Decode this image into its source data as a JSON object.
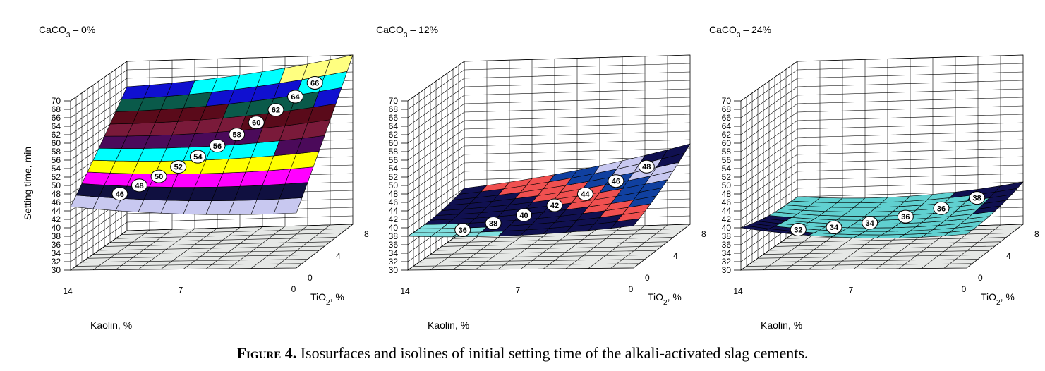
{
  "figure": {
    "caption_label": "Figure 4.",
    "caption_text": " Isosurfaces and isolines of initial setting time of the alkali-activated slag cements."
  },
  "chart_data": [
    {
      "type": "surface",
      "title_main": "CaCO",
      "title_sub": "3",
      "title_rest": " – 0%",
      "zlabel": "Setting time, min",
      "xlabel": "Kaolin, %",
      "ylabel_main": "TiO",
      "ylabel_sub": "2",
      "ylabel_rest": ", %",
      "x_ticks": [
        "14",
        "7",
        "0"
      ],
      "y_ticks": [
        "0",
        "4",
        "8"
      ],
      "z_ticks": [
        "30",
        "32",
        "34",
        "36",
        "38",
        "40",
        "42",
        "44",
        "46",
        "48",
        "50",
        "52",
        "54",
        "56",
        "58",
        "60",
        "62",
        "64",
        "66",
        "68",
        "70"
      ],
      "zlim": [
        30,
        70
      ],
      "corners": {
        "kaolin14_tio0": 45,
        "kaolin0_tio0": 43,
        "kaolin14_tio8": 64,
        "kaolin0_tio8": 70
      },
      "isolines": [
        "46",
        "48",
        "50",
        "52",
        "54",
        "56",
        "58",
        "60",
        "62",
        "64",
        "66"
      ],
      "bands": [
        {
          "max": 46,
          "color": "#c8c8f0"
        },
        {
          "max": 48,
          "color": "#101040"
        },
        {
          "max": 50,
          "color": "#ff00ff"
        },
        {
          "max": 52,
          "color": "#ffff00"
        },
        {
          "max": 54,
          "color": "#00ffff"
        },
        {
          "max": 56,
          "color": "#4b0a5a"
        },
        {
          "max": 58,
          "color": "#7a1a3a"
        },
        {
          "max": 60,
          "color": "#5a0a1a"
        },
        {
          "max": 62,
          "color": "#0a5a4a"
        },
        {
          "max": 64,
          "color": "#1010d0"
        },
        {
          "max": 66,
          "color": "#00ffff"
        },
        {
          "max": 72,
          "color": "#ffff80"
        }
      ]
    },
    {
      "type": "surface",
      "title_main": "CaCO",
      "title_sub": "3",
      "title_rest": " – 12%",
      "zlabel": "",
      "xlabel": "Kaolin, %",
      "ylabel_main": "TiO",
      "ylabel_sub": "2",
      "ylabel_rest": ", %",
      "x_ticks": [
        "14",
        "7",
        "0"
      ],
      "y_ticks": [
        "0",
        "4",
        "8"
      ],
      "z_ticks": [
        "30",
        "32",
        "34",
        "36",
        "38",
        "40",
        "42",
        "44",
        "46",
        "48",
        "50",
        "52",
        "54",
        "56",
        "58",
        "60",
        "62",
        "64",
        "66",
        "68",
        "70"
      ],
      "zlim": [
        30,
        70
      ],
      "corners": {
        "kaolin14_tio0": 38,
        "kaolin0_tio0": 40,
        "kaolin14_tio8": 40,
        "kaolin0_tio8": 49
      },
      "isolines": [
        "36",
        "38",
        "40",
        "42",
        "44",
        "46",
        "48"
      ],
      "bands": [
        {
          "max": 36,
          "color": "#ffffcc"
        },
        {
          "max": 38,
          "color": "#80e0e0"
        },
        {
          "max": 40,
          "color": "#101050"
        },
        {
          "max": 42,
          "color": "#f05050"
        },
        {
          "max": 44,
          "color": "#1040a0"
        },
        {
          "max": 46,
          "color": "#c8c8f0"
        },
        {
          "max": 48,
          "color": "#101050"
        },
        {
          "max": 52,
          "color": "#ff00ff"
        }
      ]
    },
    {
      "type": "surface",
      "title_main": "CaCO",
      "title_sub": "3",
      "title_rest": " – 24%",
      "zlabel": "",
      "xlabel": "Kaolin, %",
      "ylabel_main": "TiO",
      "ylabel_sub": "2",
      "ylabel_rest": ", %",
      "x_ticks": [
        "14",
        "7",
        "0"
      ],
      "y_ticks": [
        "0",
        "4",
        "8"
      ],
      "z_ticks": [
        "30",
        "32",
        "34",
        "36",
        "38",
        "40",
        "42",
        "44",
        "46",
        "48",
        "50",
        "52",
        "54",
        "56",
        "58",
        "60",
        "62",
        "64",
        "66",
        "68",
        "70"
      ],
      "zlim": [
        30,
        70
      ],
      "corners": {
        "kaolin14_tio0": 40,
        "kaolin0_tio0": 38,
        "kaolin14_tio8": 38,
        "kaolin0_tio8": 40
      },
      "isolines": [
        "32",
        "34",
        "34",
        "36",
        "36",
        "38"
      ],
      "bands": [
        {
          "max": 32,
          "color": "#5050e0"
        },
        {
          "max": 34,
          "color": "#5a0a24"
        },
        {
          "max": 36,
          "color": "#ffffc0"
        },
        {
          "max": 38,
          "color": "#60d0d0"
        },
        {
          "max": 42,
          "color": "#101050"
        }
      ]
    }
  ]
}
